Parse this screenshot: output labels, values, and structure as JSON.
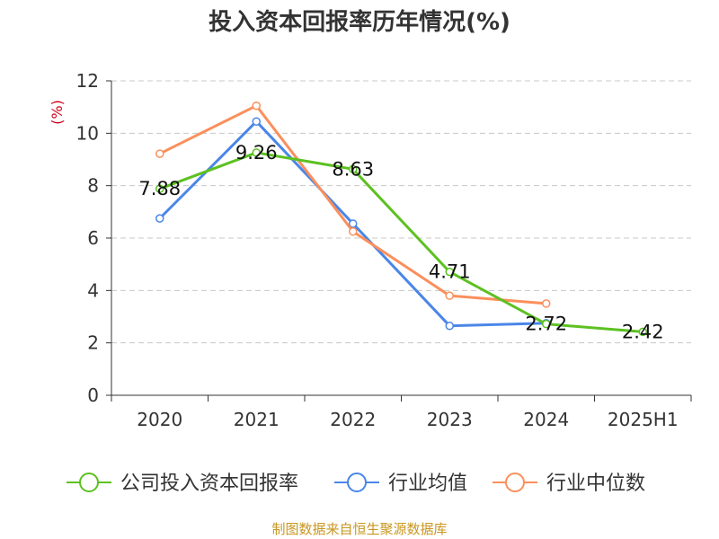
{
  "title": "投入资本回报率历年情况(%)",
  "source": "制图数据来自恒生聚源数据库",
  "colors": {
    "company": "#5cc121",
    "industry_avg": "#4a86e8",
    "industry_median": "#fb8f5b",
    "axis": "#333333",
    "grid": "#c8c8c8",
    "unit": "#d0021b"
  },
  "chart_data": {
    "type": "line",
    "title": "投入资本回报率历年情况(%)",
    "ylabel": "(%)",
    "ylim": [
      0,
      12
    ],
    "yticks": [
      0,
      2,
      4,
      6,
      8,
      10,
      12
    ],
    "grid": true,
    "legend_position": "bottom",
    "categories": [
      "2020",
      "2021",
      "2022",
      "2023",
      "2024",
      "2025H1"
    ],
    "series": [
      {
        "name": "公司投入资本回报率",
        "color": "#5cc121",
        "values": [
          7.88,
          9.26,
          8.63,
          4.71,
          2.72,
          2.42
        ],
        "show_labels": true
      },
      {
        "name": "行业均值",
        "color": "#4a86e8",
        "values": [
          6.75,
          10.45,
          6.55,
          2.65,
          2.75,
          null
        ],
        "show_labels": false
      },
      {
        "name": "行业中位数",
        "color": "#fb8f5b",
        "values": [
          9.22,
          11.05,
          6.25,
          3.8,
          3.5,
          null
        ],
        "show_labels": false
      }
    ]
  }
}
